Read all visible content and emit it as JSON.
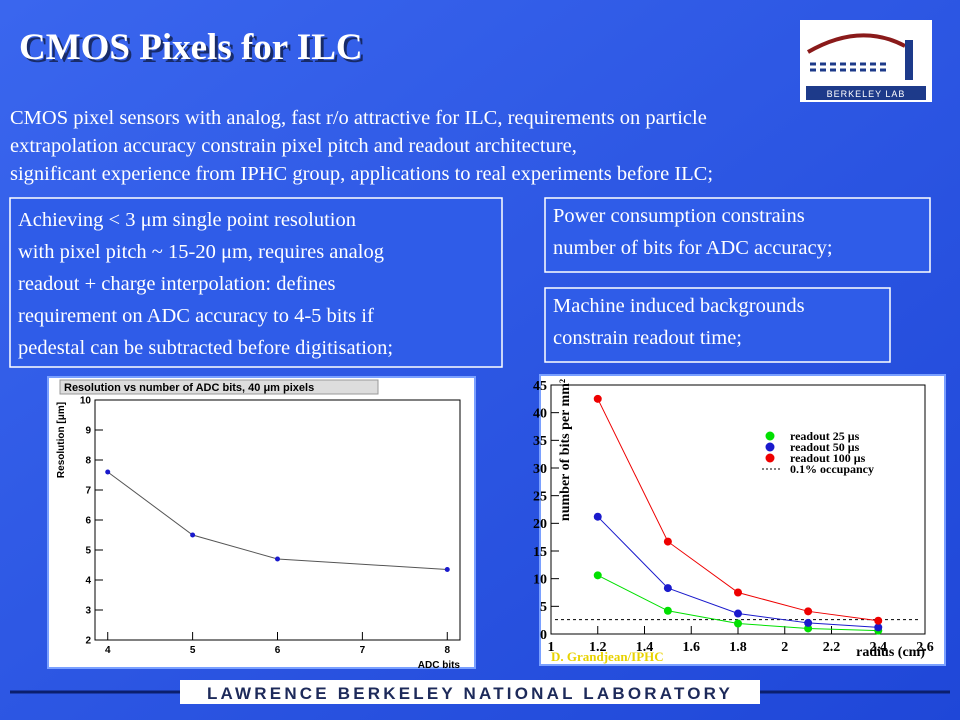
{
  "slide": {
    "title": "CMOS Pixels for ILC",
    "logo_text": "BERKELEY LAB",
    "intro_lines": [
      "CMOS pixel sensors with analog, fast r/o attractive for ILC, requirements on particle",
      "extrapolation accuracy constrain pixel pitch and readout architecture,",
      "significant experience from IPHC group, applications to real experiments before ILC;"
    ],
    "boxes": [
      {
        "lines": [
          "Achieving < 3 μm single point resolution",
          "with pixel pitch ~ 15-20 μm, requires analog",
          "readout + charge interpolation: defines",
          "requirement on ADC accuracy to 4-5 bits if",
          "pedestal can be subtracted before digitisation;"
        ]
      },
      {
        "lines": [
          "Power consumption constrains",
          "number of bits for ADC accuracy;"
        ]
      },
      {
        "lines": [
          "Machine induced backgrounds",
          "constrain readout time;"
        ]
      }
    ],
    "footer": "LAWRENCE BERKELEY NATIONAL LABORATORY"
  },
  "chart_data": [
    {
      "type": "line",
      "title": "Resolution vs number of ADC bits, 40 μm pixels",
      "x_label": "ADC bits",
      "y_label": "Resolution [μm]",
      "x": [
        4,
        5,
        6,
        8
      ],
      "series": [
        {
          "color": "#1a1acc",
          "values": [
            7.6,
            5.5,
            4.7,
            4.35
          ]
        }
      ],
      "xlim": [
        3.85,
        8.15
      ],
      "ylim": [
        2,
        10
      ],
      "xticks": [
        4,
        5,
        6,
        7,
        8
      ],
      "yticks": [
        2,
        3,
        4,
        5,
        6,
        7,
        8,
        9,
        10
      ]
    },
    {
      "type": "line",
      "x_label": "radius (cm)",
      "y_label": "number of bits per mm²",
      "x": [
        1.2,
        1.5,
        1.8,
        2.1,
        2.4
      ],
      "series": [
        {
          "name": "readout 25 μs",
          "color": "#00e000",
          "values": [
            10.6,
            4.2,
            1.9,
            1.0,
            0.6
          ]
        },
        {
          "name": "readout 50 μs",
          "color": "#1a1acc",
          "values": [
            21.2,
            8.3,
            3.7,
            2.0,
            1.2
          ]
        },
        {
          "name": "readout 100 μs",
          "color": "#ee0000",
          "values": [
            42.5,
            16.7,
            7.5,
            4.1,
            2.4
          ]
        }
      ],
      "reference_line": {
        "name": "0.1% occupancy",
        "value": 2.6,
        "color": "#000000"
      },
      "annotation": "D. Grandjean/IPHC",
      "xlim": [
        1,
        2.6
      ],
      "ylim": [
        0,
        45
      ],
      "xticks": [
        1,
        1.2,
        1.4,
        1.6,
        1.8,
        2,
        2.2,
        2.4,
        2.6
      ],
      "yticks": [
        0,
        5,
        10,
        15,
        20,
        25,
        30,
        35,
        40,
        45
      ]
    }
  ]
}
